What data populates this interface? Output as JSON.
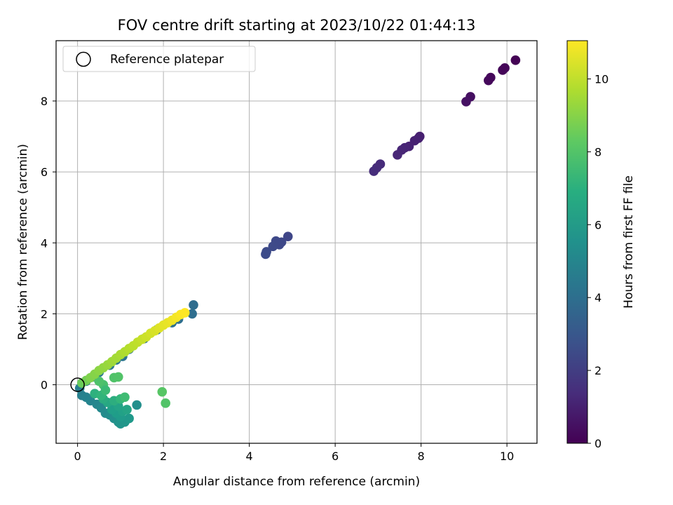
{
  "chart_data": {
    "type": "scatter",
    "title": "FOV centre drift starting at 2023/10/22 01:44:13",
    "xlabel": "Angular distance from reference (arcmin)",
    "ylabel": "Rotation from reference (arcmin)",
    "xlim": [
      -0.5,
      10.7
    ],
    "ylim": [
      -1.65,
      9.7
    ],
    "xticks": [
      0,
      2,
      4,
      6,
      8,
      10
    ],
    "yticks": [
      0,
      2,
      4,
      6,
      8
    ],
    "grid": true,
    "legend": {
      "placement": "top-left",
      "entries": [
        "Reference platepar"
      ]
    },
    "reference_point": {
      "x": 0,
      "y": 0
    },
    "colorbar": {
      "label": "Hours from first FF file",
      "range": [
        0,
        11.05
      ],
      "ticks": [
        0,
        2,
        4,
        6,
        8,
        10
      ],
      "colormap": "viridis"
    },
    "points": [
      {
        "x": 10.2,
        "y": 9.15,
        "h": 0.05
      },
      {
        "x": 9.95,
        "y": 8.93,
        "h": 0.12
      },
      {
        "x": 9.9,
        "y": 8.87,
        "h": 0.15
      },
      {
        "x": 9.62,
        "y": 8.66,
        "h": 0.2
      },
      {
        "x": 9.57,
        "y": 8.58,
        "h": 0.23
      },
      {
        "x": 9.15,
        "y": 8.12,
        "h": 0.45
      },
      {
        "x": 9.05,
        "y": 7.98,
        "h": 0.5
      },
      {
        "x": 7.97,
        "y": 7.0,
        "h": 0.95
      },
      {
        "x": 7.94,
        "y": 6.95,
        "h": 0.98
      },
      {
        "x": 7.85,
        "y": 6.88,
        "h": 1.02
      },
      {
        "x": 7.72,
        "y": 6.72,
        "h": 1.08
      },
      {
        "x": 7.62,
        "y": 6.68,
        "h": 1.12
      },
      {
        "x": 7.55,
        "y": 6.62,
        "h": 1.15
      },
      {
        "x": 7.45,
        "y": 6.48,
        "h": 1.2
      },
      {
        "x": 7.05,
        "y": 6.22,
        "h": 1.35
      },
      {
        "x": 6.97,
        "y": 6.12,
        "h": 1.4
      },
      {
        "x": 6.9,
        "y": 6.02,
        "h": 1.42
      },
      {
        "x": 4.9,
        "y": 4.18,
        "h": 2.35
      },
      {
        "x": 4.75,
        "y": 4.02,
        "h": 2.4
      },
      {
        "x": 4.7,
        "y": 3.95,
        "h": 2.43
      },
      {
        "x": 4.62,
        "y": 4.05,
        "h": 2.45
      },
      {
        "x": 4.55,
        "y": 3.9,
        "h": 2.48
      },
      {
        "x": 4.4,
        "y": 3.75,
        "h": 2.55
      },
      {
        "x": 4.38,
        "y": 3.68,
        "h": 2.58
      },
      {
        "x": 2.7,
        "y": 2.25,
        "h": 3.9
      },
      {
        "x": 2.67,
        "y": 2.0,
        "h": 3.95
      },
      {
        "x": 2.35,
        "y": 1.85,
        "h": 4.0
      },
      {
        "x": 2.2,
        "y": 1.75,
        "h": 4.05
      },
      {
        "x": 1.85,
        "y": 1.55,
        "h": 4.1
      },
      {
        "x": 1.55,
        "y": 1.3,
        "h": 4.15
      },
      {
        "x": 1.2,
        "y": 1.0,
        "h": 4.25
      },
      {
        "x": 1.05,
        "y": 0.8,
        "h": 4.3
      },
      {
        "x": 0.9,
        "y": 0.7,
        "h": 4.35
      },
      {
        "x": 0.75,
        "y": 0.55,
        "h": 4.4
      },
      {
        "x": 0.5,
        "y": 0.35,
        "h": 4.5
      },
      {
        "x": 0.35,
        "y": 0.22,
        "h": 4.55
      },
      {
        "x": 0.2,
        "y": 0.1,
        "h": 4.6
      },
      {
        "x": 0.05,
        "y": -0.1,
        "h": 4.7
      },
      {
        "x": 0.1,
        "y": -0.3,
        "h": 4.8
      },
      {
        "x": 0.2,
        "y": -0.35,
        "h": 4.9
      },
      {
        "x": 0.3,
        "y": -0.45,
        "h": 5.0
      },
      {
        "x": 0.45,
        "y": -0.55,
        "h": 5.1
      },
      {
        "x": 0.55,
        "y": -0.65,
        "h": 5.2
      },
      {
        "x": 0.65,
        "y": -0.8,
        "h": 5.3
      },
      {
        "x": 0.75,
        "y": -0.85,
        "h": 5.4
      },
      {
        "x": 0.85,
        "y": -0.95,
        "h": 5.5
      },
      {
        "x": 0.95,
        "y": -1.05,
        "h": 5.6
      },
      {
        "x": 1.0,
        "y": -1.1,
        "h": 5.7
      },
      {
        "x": 1.1,
        "y": -1.05,
        "h": 5.8
      },
      {
        "x": 1.2,
        "y": -0.95,
        "h": 5.9
      },
      {
        "x": 1.0,
        "y": -0.9,
        "h": 6.0
      },
      {
        "x": 0.9,
        "y": -0.8,
        "h": 6.1
      },
      {
        "x": 0.8,
        "y": -0.7,
        "h": 6.2
      },
      {
        "x": 1.05,
        "y": -0.75,
        "h": 6.3
      },
      {
        "x": 0.95,
        "y": -0.6,
        "h": 6.4
      },
      {
        "x": 1.15,
        "y": -0.7,
        "h": 6.45
      },
      {
        "x": 1.38,
        "y": -0.57,
        "h": 5.5
      },
      {
        "x": 0.7,
        "y": -0.5,
        "h": 6.6
      },
      {
        "x": 0.6,
        "y": -0.4,
        "h": 6.8
      },
      {
        "x": 0.85,
        "y": -0.45,
        "h": 6.9
      },
      {
        "x": 0.4,
        "y": -0.25,
        "h": 7.0
      },
      {
        "x": 0.55,
        "y": -0.3,
        "h": 7.2
      },
      {
        "x": 1.0,
        "y": -0.4,
        "h": 7.3
      },
      {
        "x": 1.1,
        "y": -0.35,
        "h": 7.6
      },
      {
        "x": 0.6,
        "y": 0.0,
        "h": 7.8
      },
      {
        "x": 0.5,
        "y": 0.1,
        "h": 7.9
      },
      {
        "x": 0.85,
        "y": 0.2,
        "h": 7.95
      },
      {
        "x": 0.95,
        "y": 0.22,
        "h": 8.0
      },
      {
        "x": 0.65,
        "y": -0.15,
        "h": 7.5
      },
      {
        "x": 1.97,
        "y": -0.2,
        "h": 8.1
      },
      {
        "x": 2.05,
        "y": -0.52,
        "h": 8.0
      },
      {
        "x": 0.1,
        "y": 0.05,
        "h": 8.5
      },
      {
        "x": 0.2,
        "y": 0.12,
        "h": 8.7
      },
      {
        "x": 0.3,
        "y": 0.2,
        "h": 8.9
      },
      {
        "x": 0.4,
        "y": 0.3,
        "h": 9.0
      },
      {
        "x": 0.5,
        "y": 0.4,
        "h": 9.1
      },
      {
        "x": 0.6,
        "y": 0.48,
        "h": 9.2
      },
      {
        "x": 0.7,
        "y": 0.56,
        "h": 9.3
      },
      {
        "x": 0.8,
        "y": 0.65,
        "h": 9.4
      },
      {
        "x": 0.9,
        "y": 0.75,
        "h": 9.5
      },
      {
        "x": 1.0,
        "y": 0.85,
        "h": 9.6
      },
      {
        "x": 1.1,
        "y": 0.93,
        "h": 9.7
      },
      {
        "x": 1.2,
        "y": 1.02,
        "h": 9.8
      },
      {
        "x": 1.3,
        "y": 1.1,
        "h": 9.9
      },
      {
        "x": 1.4,
        "y": 1.2,
        "h": 10.0
      },
      {
        "x": 1.5,
        "y": 1.28,
        "h": 10.1
      },
      {
        "x": 1.6,
        "y": 1.35,
        "h": 10.2
      },
      {
        "x": 1.7,
        "y": 1.45,
        "h": 10.3
      },
      {
        "x": 1.8,
        "y": 1.52,
        "h": 10.4
      },
      {
        "x": 1.9,
        "y": 1.6,
        "h": 10.5
      },
      {
        "x": 2.0,
        "y": 1.68,
        "h": 10.6
      },
      {
        "x": 2.1,
        "y": 1.75,
        "h": 10.7
      },
      {
        "x": 2.2,
        "y": 1.82,
        "h": 10.8
      },
      {
        "x": 2.3,
        "y": 1.9,
        "h": 10.9
      },
      {
        "x": 2.4,
        "y": 1.98,
        "h": 11.0
      },
      {
        "x": 2.5,
        "y": 2.03,
        "h": 11.05
      }
    ]
  }
}
